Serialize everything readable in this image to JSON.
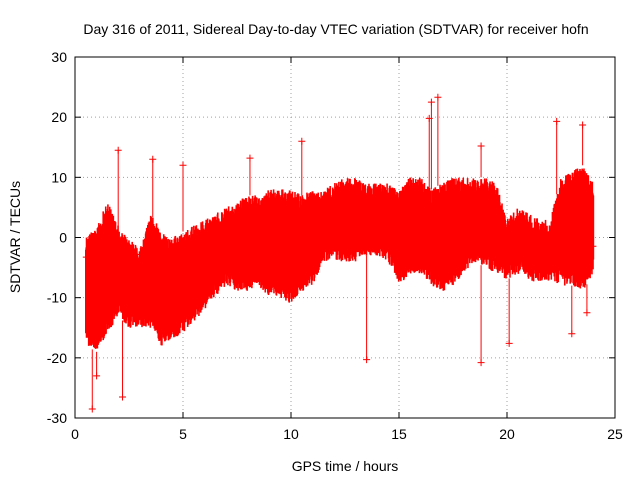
{
  "chart_data": {
    "type": "scatter",
    "title": "Day 316 of 2011, Sidereal Day-to-day VTEC variation (SDTVAR) for receiver hofn",
    "xlabel": "GPS time / hours",
    "ylabel": "SDTVAR / TECUs",
    "xlim": [
      0,
      25
    ],
    "ylim": [
      -30,
      30
    ],
    "xticks": [
      0,
      5,
      10,
      15,
      20,
      25
    ],
    "yticks": [
      -30,
      -20,
      -10,
      0,
      10,
      20,
      30
    ],
    "grid": true,
    "colors": {
      "series": "#ff0000"
    },
    "marker": "plus-with-errorbars",
    "series": [
      {
        "name": "SDTVAR",
        "x": [
          0.5,
          1,
          1.5,
          2,
          2.5,
          3,
          3.5,
          4,
          4.5,
          5,
          5.5,
          6,
          6.5,
          7,
          7.5,
          8,
          8.5,
          9,
          9.5,
          10,
          10.5,
          11,
          11.5,
          12,
          12.5,
          13,
          13.5,
          14,
          14.5,
          15,
          15.5,
          16,
          16.5,
          17,
          17.5,
          18,
          18.5,
          19,
          19.5,
          20,
          20.5,
          21,
          21.5,
          22,
          22.5,
          23,
          23.5,
          24
        ],
        "center": [
          -5,
          -6,
          -5,
          -4,
          -6,
          -4,
          -2,
          -5,
          -6,
          -7,
          -6,
          -4,
          -3,
          -2,
          -2,
          -1,
          0,
          0,
          0,
          0,
          0,
          0,
          1,
          1,
          2,
          3,
          4,
          3,
          2,
          1,
          2,
          2,
          0,
          1,
          2,
          2,
          3,
          3,
          2,
          1,
          0,
          1,
          0,
          -1,
          0,
          1,
          0,
          -1
        ],
        "upper": [
          0,
          2,
          6,
          2,
          0,
          -2,
          4,
          1,
          0,
          1,
          2,
          3,
          4,
          5,
          6,
          7,
          7,
          8,
          8,
          8,
          7,
          8,
          8,
          9,
          10,
          10,
          9,
          9,
          9,
          8,
          10,
          10,
          8,
          9,
          10,
          10,
          10,
          10,
          9,
          3,
          5,
          4,
          3,
          3,
          10,
          11,
          12,
          9
        ],
        "lower": [
          -18,
          -19,
          -16,
          -13,
          -15,
          -15,
          -15,
          -18,
          -17,
          -16,
          -14,
          -12,
          -10,
          -8,
          -9,
          -9,
          -8,
          -10,
          -10,
          -11,
          -9,
          -8,
          -4,
          -4,
          -4,
          -4,
          -3,
          -3,
          -4,
          -8,
          -6,
          -6,
          -8,
          -9,
          -8,
          -6,
          -4,
          -5,
          -6,
          -7,
          -6,
          -7,
          -8,
          -7,
          -8,
          -8,
          -9,
          -6
        ],
        "outliers": [
          [
            0.8,
            -28.5
          ],
          [
            1.0,
            -23
          ],
          [
            2.2,
            -26.5
          ],
          [
            2.0,
            14.5
          ],
          [
            3.6,
            13
          ],
          [
            5.0,
            12
          ],
          [
            8.1,
            13.2
          ],
          [
            10.5,
            16
          ],
          [
            13.5,
            -20.3
          ],
          [
            16.4,
            19.8
          ],
          [
            16.5,
            22.5
          ],
          [
            16.8,
            23.3
          ],
          [
            18.8,
            15.2
          ],
          [
            18.8,
            -20.8
          ],
          [
            20.1,
            -17.6
          ],
          [
            22.3,
            19.3
          ],
          [
            23.0,
            -16
          ],
          [
            23.5,
            18.7
          ],
          [
            23.7,
            -12.5
          ]
        ]
      }
    ]
  }
}
